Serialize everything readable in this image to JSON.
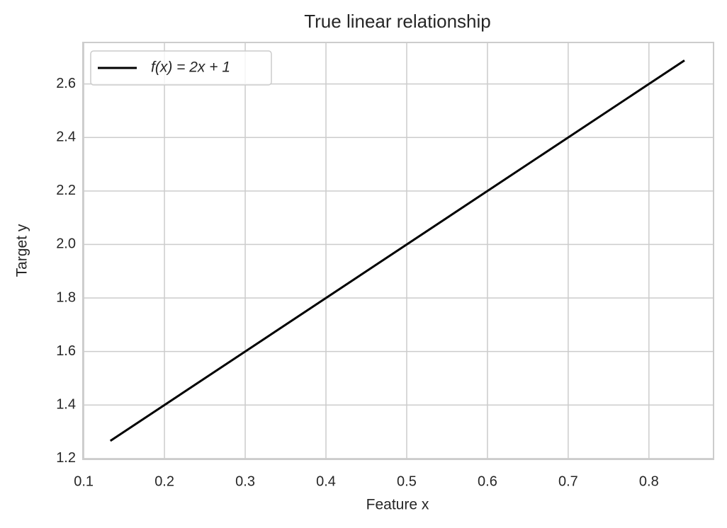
{
  "chart_data": {
    "type": "line",
    "title": "True linear relationship",
    "xlabel": "Feature x",
    "ylabel": "Target y",
    "x": [
      0.133,
      0.844
    ],
    "series": [
      {
        "name": "f(x) = 2x + 1",
        "color": "#000000",
        "values": [
          1.266,
          2.688
        ]
      }
    ],
    "xlim": [
      0.099,
      0.88
    ],
    "xticks": [
      0.1,
      0.2,
      0.3,
      0.4,
      0.5,
      0.6,
      0.7,
      0.8
    ],
    "ylim": [
      1.197,
      2.755
    ],
    "yticks": [
      1.2,
      1.4,
      1.6,
      1.8,
      {
        "value": 2,
        "label": "2.0"
      },
      2.2,
      2.4,
      2.6
    ],
    "grid": true,
    "legend": "upper left"
  }
}
